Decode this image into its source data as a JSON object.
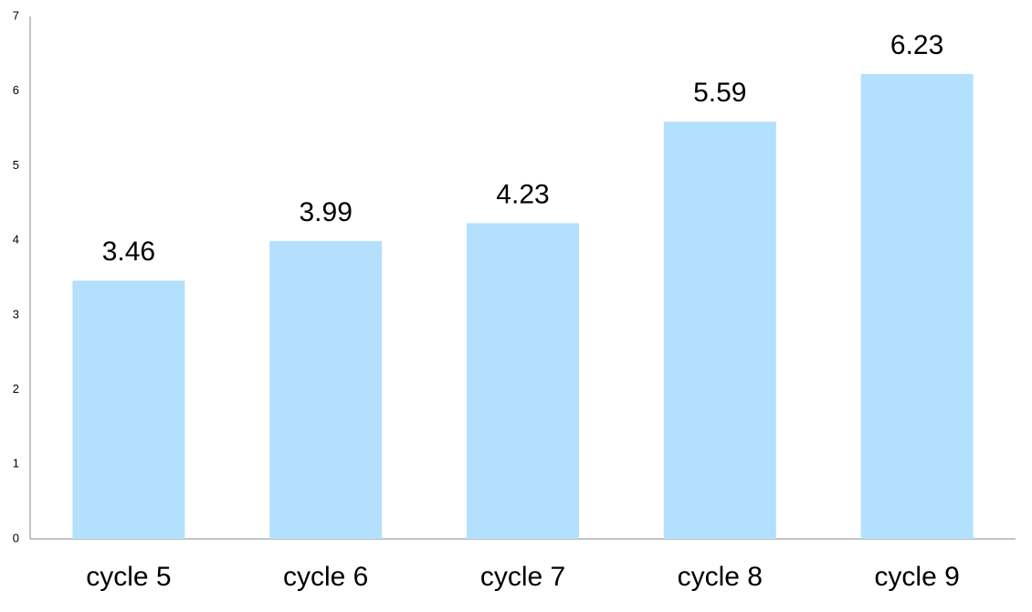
{
  "chart_data": {
    "type": "bar",
    "categories": [
      "cycle 5",
      "cycle 6",
      "cycle 7",
      "cycle 8",
      "cycle 9"
    ],
    "values": [
      3.46,
      3.99,
      4.23,
      5.59,
      6.23
    ],
    "color": "#b3e0fc",
    "ylim": [
      0,
      7
    ],
    "yticks": [
      0,
      1,
      2,
      3,
      4,
      5,
      6,
      7
    ],
    "grid": false
  }
}
